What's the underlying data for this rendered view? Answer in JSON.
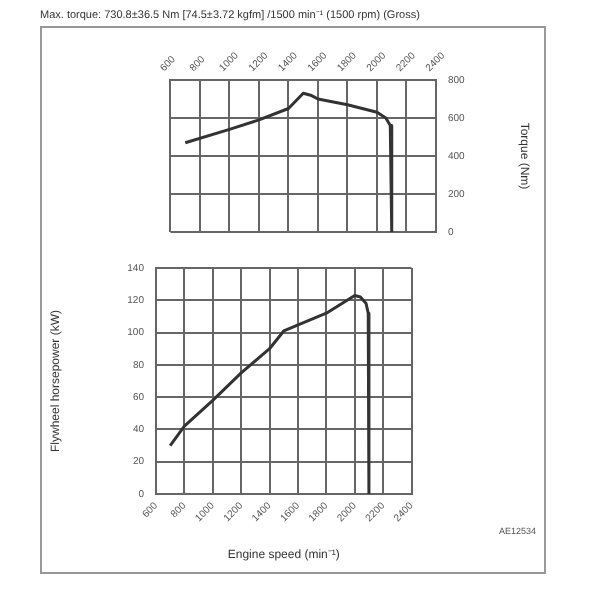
{
  "chart_data": [
    {
      "type": "line",
      "title": "Max. torque: 730.8±36.5 Nm [74.5±3.72 kgfm] /1500 min⁻¹ (1500 rpm) (Gross)",
      "ylabel": "Torque (Nm)",
      "color": "#333333",
      "grid": true,
      "x": [
        700,
        1000,
        1200,
        1400,
        1500,
        1550,
        1600,
        1800,
        2000,
        2060,
        2090,
        2100
      ],
      "values": [
        470,
        540,
        590,
        650,
        730,
        720,
        700,
        670,
        630,
        600,
        560,
        0
      ],
      "xlim": [
        600,
        2400
      ],
      "xticks": [
        600,
        800,
        1000,
        1200,
        1400,
        1600,
        1800,
        2000,
        2200,
        2400
      ],
      "ylim": [
        0,
        800
      ],
      "yticks": [
        0,
        200,
        400,
        600,
        800
      ]
    },
    {
      "type": "line",
      "xlabel": "Engine speed (min⁻¹)",
      "ylabel": "Flywheel horsepower (kW)",
      "color": "#333333",
      "grid": true,
      "annotations": [
        "AE12534"
      ],
      "x": [
        700,
        800,
        1000,
        1200,
        1400,
        1500,
        1800,
        2000,
        2040,
        2080,
        2095,
        2100
      ],
      "values": [
        30,
        42,
        58,
        75,
        90,
        101,
        112,
        123,
        122,
        118,
        112,
        0
      ],
      "xlim": [
        600,
        2400
      ],
      "xticks": [
        600,
        800,
        1000,
        1200,
        1400,
        1600,
        1800,
        2000,
        2200,
        2400
      ],
      "ylim": [
        0,
        140
      ],
      "yticks": [
        0,
        20,
        40,
        60,
        80,
        100,
        120,
        140
      ]
    }
  ]
}
